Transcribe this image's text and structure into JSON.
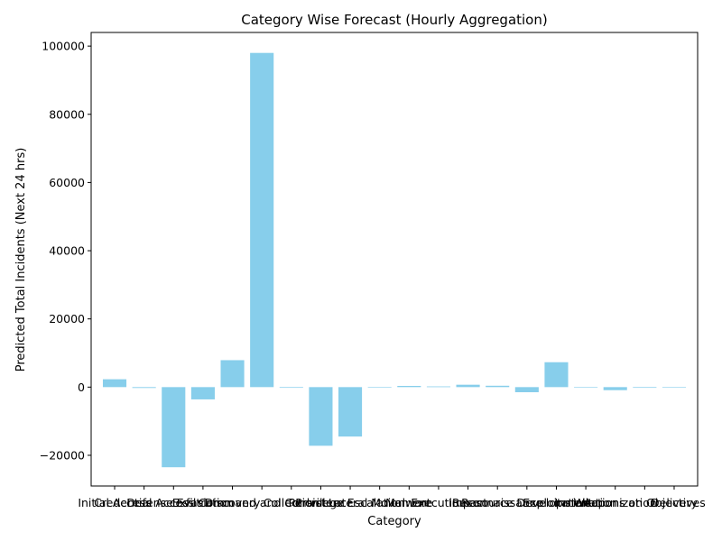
{
  "chart_data": {
    "type": "bar",
    "title": "Category Wise Forecast (Hourly Aggregation)",
    "xlabel": "Category",
    "ylabel": "Predicted Total Incidents (Next 24 hrs)",
    "ylim": [
      -29000,
      104000
    ],
    "yticks": [
      -20000,
      0,
      20000,
      40000,
      60000,
      80000,
      100000
    ],
    "bar_color": "#87ceeb",
    "grid": false,
    "legend": "none",
    "categories": [
      "Initial Access",
      "Credential Access",
      "Defense Evasion",
      "Exfiltration",
      "Discovery",
      "Command and Control",
      "Collection",
      "Persistence",
      "Privilege Escalation",
      "Lateral Movement",
      "Malware",
      "Execution",
      "Impact",
      "Reconnaissance",
      "Resource Development",
      "Exploitation",
      "Installation",
      "Weaponization",
      "Actions on Objectives",
      "Delivery"
    ],
    "values": [
      2300,
      -250,
      -23500,
      -3600,
      7900,
      98000,
      -200,
      -17200,
      -14500,
      -150,
      350,
      200,
      700,
      400,
      -1500,
      7300,
      0,
      -900,
      -200,
      -150
    ]
  }
}
